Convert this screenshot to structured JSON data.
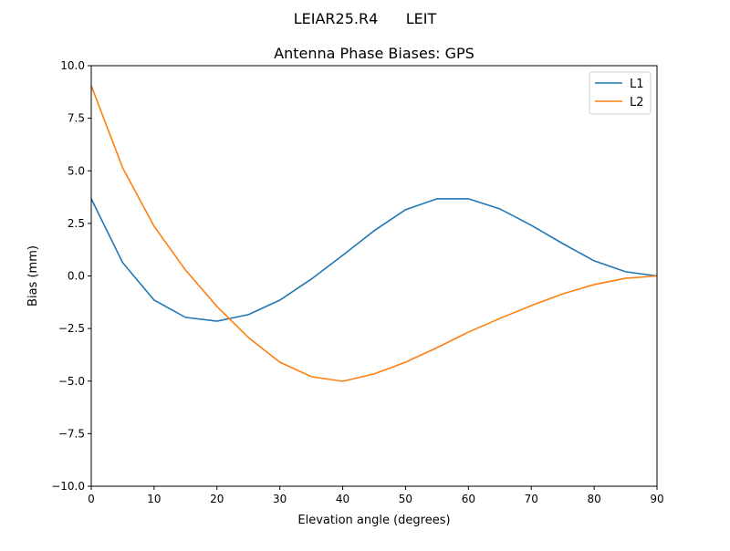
{
  "chart_data": {
    "type": "line",
    "suptitle": "LEIAR25.R4      LEIT",
    "title": "Antenna Phase Biases: GPS",
    "xlabel": "Elevation angle (degrees)",
    "ylabel": "Bias (mm)",
    "xlim": [
      0,
      90
    ],
    "ylim": [
      -10,
      10
    ],
    "xticks": [
      "0",
      "10",
      "20",
      "30",
      "40",
      "50",
      "60",
      "70",
      "80",
      "90"
    ],
    "yticks": [
      "10.0",
      "7.5",
      "5.0",
      "2.5",
      "0.0",
      "−2.5",
      "−5.0",
      "−7.5",
      "−10.0"
    ],
    "grid": false,
    "legend_position": "top-right",
    "x": [
      0,
      5,
      10,
      15,
      20,
      25,
      30,
      35,
      40,
      45,
      50,
      55,
      60,
      65,
      70,
      75,
      80,
      85,
      90
    ],
    "series": [
      {
        "name": "L1",
        "color": "#1f77b4",
        "values": [
          3.67,
          0.63,
          -1.15,
          -1.97,
          -2.15,
          -1.84,
          -1.15,
          -0.15,
          0.98,
          2.15,
          3.15,
          3.67,
          3.67,
          3.19,
          2.41,
          1.54,
          0.72,
          0.2,
          0.0
        ]
      },
      {
        "name": "L2",
        "color": "#ff7f0e",
        "values": [
          9.05,
          5.14,
          2.36,
          0.28,
          -1.45,
          -2.93,
          -4.1,
          -4.79,
          -5.01,
          -4.66,
          -4.1,
          -3.41,
          -2.67,
          -2.02,
          -1.41,
          -0.85,
          -0.41,
          -0.11,
          0.0
        ]
      }
    ]
  }
}
